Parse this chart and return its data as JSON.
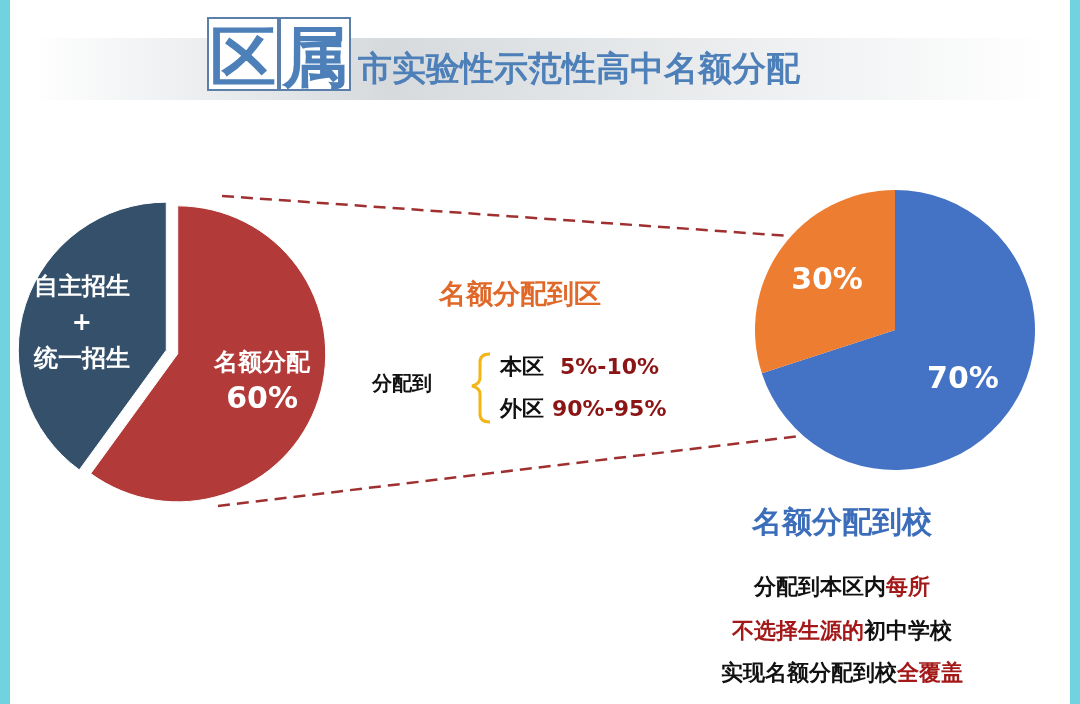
{
  "chart_data": [
    {
      "type": "pie",
      "title": "区属市实验性示范性高中名额分配",
      "categories": [
        "名额分配",
        "自主招生\n+\n统一招生"
      ],
      "values": [
        60,
        40
      ],
      "colors": [
        "#b23a38",
        "#34506b"
      ],
      "value_labels": [
        "60%",
        null
      ]
    },
    {
      "type": "pie",
      "categories": [
        null,
        null
      ],
      "values": [
        70,
        30
      ],
      "colors": [
        "#4472c4",
        "#ed7d31"
      ],
      "value_labels": [
        "70%",
        "30%"
      ],
      "annotations": [
        "名额分配到区",
        "分配到",
        "本区",
        "5%-10%",
        "外区",
        "90%-95%",
        "名额分配到校",
        "分配到本区内",
        "每所",
        "不选择生源的",
        "初中学校",
        "实现名额分配到校",
        "全覆盖"
      ]
    }
  ]
}
